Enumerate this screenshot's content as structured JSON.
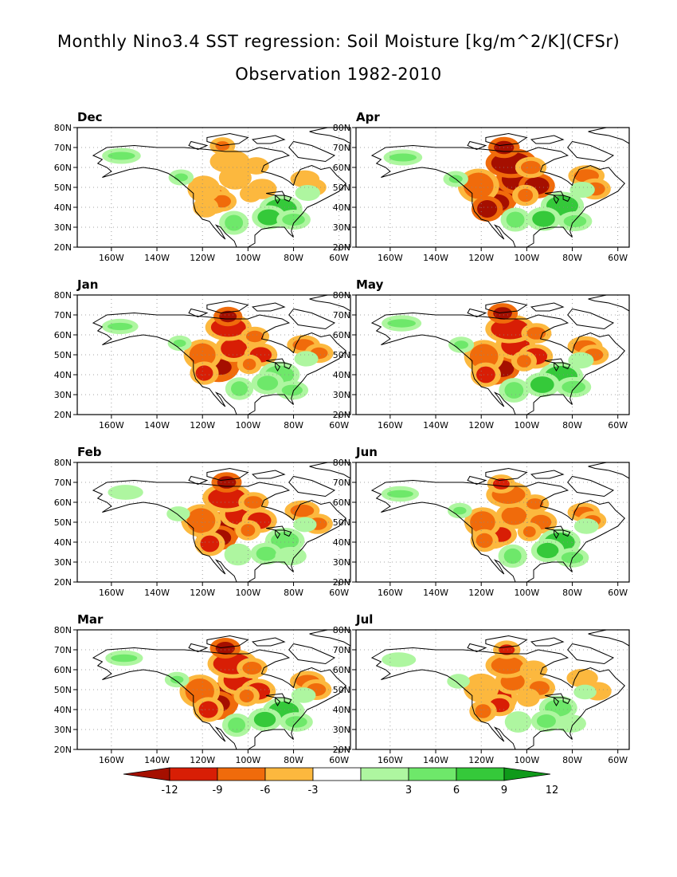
{
  "title": "Monthly Nino3.4 SST regression: Soil Moisture [kg/m^2/K](CFSr)",
  "subtitle": "Observation 1982-2010",
  "axes": {
    "lat_ticks": [
      "80N",
      "70N",
      "60N",
      "50N",
      "40N",
      "30N",
      "20N"
    ],
    "lon_ticks": [
      "160W",
      "140W",
      "120W",
      "100W",
      "80W",
      "60W"
    ],
    "lon_range": [
      -175,
      -55
    ],
    "lat_range": [
      20,
      80
    ]
  },
  "panels": [
    {
      "month": "Dec",
      "intensity": 0.45,
      "green": 1.0
    },
    {
      "month": "Apr",
      "intensity": 1.25,
      "green": 1.0
    },
    {
      "month": "Jan",
      "intensity": 0.9,
      "green": 0.8
    },
    {
      "month": "May",
      "intensity": 1.1,
      "green": 1.1
    },
    {
      "month": "Feb",
      "intensity": 1.1,
      "green": 0.7
    },
    {
      "month": "Jun",
      "intensity": 0.8,
      "green": 0.9
    },
    {
      "month": "Mar",
      "intensity": 1.15,
      "green": 0.9
    },
    {
      "month": "Jul",
      "intensity": 0.7,
      "green": 0.6
    }
  ],
  "colorbar": {
    "labels": [
      "-12",
      "-9",
      "-6",
      "-3",
      "3",
      "6",
      "9",
      "12"
    ],
    "colors": [
      "#a50f00",
      "#d81e05",
      "#f06b0b",
      "#fcb83e",
      "#ffffff",
      "#aef6a0",
      "#6ee86a",
      "#35c93a",
      "#0f9a1a"
    ]
  }
}
